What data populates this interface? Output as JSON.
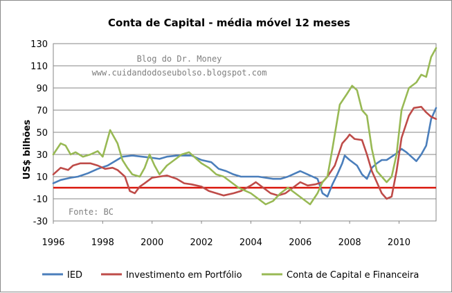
{
  "chart_data": {
    "type": "line",
    "title": "Conta de Capital - média móvel 12 meses",
    "xlabel": "",
    "ylabel": "US$ bilhões",
    "xlim": [
      1996,
      2011.5
    ],
    "ylim": [
      -30,
      130
    ],
    "x_ticks": [
      "1996",
      "1998",
      "2000",
      "2002",
      "2004",
      "2006",
      "2008",
      "2010"
    ],
    "y_ticks": [
      "130",
      "110",
      "90",
      "70",
      "50",
      "30",
      "10",
      "-10",
      "-30"
    ],
    "grid": true,
    "legend_position": "bottom",
    "reference_line": {
      "y": 0,
      "color": "#d9150b"
    },
    "annotations": [
      "Blog do Dr. Money",
      "www.cuidandodoseubolso.blogspot.com",
      "Fonte: BC"
    ],
    "series": [
      {
        "name": "IED",
        "color": "#4a7ebb",
        "points": [
          [
            1996,
            4
          ],
          [
            1996.3,
            7
          ],
          [
            1996.7,
            9
          ],
          [
            1997,
            10
          ],
          [
            1997.4,
            13
          ],
          [
            1997.8,
            17
          ],
          [
            1998.2,
            20
          ],
          [
            1998.5,
            24
          ],
          [
            1998.8,
            28
          ],
          [
            1999.2,
            29
          ],
          [
            1999.6,
            28
          ],
          [
            2000,
            27
          ],
          [
            2000.3,
            26
          ],
          [
            2000.6,
            28
          ],
          [
            2001,
            29
          ],
          [
            2001.3,
            29
          ],
          [
            2001.6,
            29
          ],
          [
            2002,
            25
          ],
          [
            2002.4,
            23
          ],
          [
            2002.7,
            17
          ],
          [
            2003,
            15
          ],
          [
            2003.3,
            12
          ],
          [
            2003.6,
            10
          ],
          [
            2004,
            10
          ],
          [
            2004.3,
            10
          ],
          [
            2004.6,
            9
          ],
          [
            2004.9,
            8
          ],
          [
            2005.2,
            8
          ],
          [
            2005.5,
            10
          ],
          [
            2005.8,
            13
          ],
          [
            2006,
            15
          ],
          [
            2006.3,
            12
          ],
          [
            2006.5,
            10
          ],
          [
            2006.7,
            8
          ],
          [
            2006.9,
            -5
          ],
          [
            2007.1,
            -8
          ],
          [
            2007.3,
            3
          ],
          [
            2007.5,
            12
          ],
          [
            2007.7,
            22
          ],
          [
            2007.8,
            29
          ],
          [
            2008,
            25
          ],
          [
            2008.3,
            20
          ],
          [
            2008.5,
            12
          ],
          [
            2008.7,
            8
          ],
          [
            2008.9,
            18
          ],
          [
            2009.1,
            22
          ],
          [
            2009.3,
            25
          ],
          [
            2009.5,
            25
          ],
          [
            2009.7,
            28
          ],
          [
            2009.9,
            31
          ],
          [
            2010.1,
            35
          ],
          [
            2010.3,
            32
          ],
          [
            2010.5,
            28
          ],
          [
            2010.7,
            24
          ],
          [
            2010.9,
            30
          ],
          [
            2011.1,
            38
          ],
          [
            2011.3,
            62
          ],
          [
            2011.5,
            72
          ]
        ]
      },
      {
        "name": "Investimento em Portfólio",
        "color": "#be4b48",
        "points": [
          [
            1996,
            12
          ],
          [
            1996.3,
            18
          ],
          [
            1996.6,
            16
          ],
          [
            1996.8,
            20
          ],
          [
            1997.1,
            22
          ],
          [
            1997.5,
            22
          ],
          [
            1997.8,
            20
          ],
          [
            1998.1,
            17
          ],
          [
            1998.4,
            18
          ],
          [
            1998.6,
            16
          ],
          [
            1998.9,
            10
          ],
          [
            1999.1,
            -3
          ],
          [
            1999.3,
            -5
          ],
          [
            1999.5,
            1
          ],
          [
            1999.7,
            4
          ],
          [
            2000,
            9
          ],
          [
            2000.3,
            10
          ],
          [
            2000.6,
            11
          ],
          [
            2001,
            8
          ],
          [
            2001.3,
            4
          ],
          [
            2001.6,
            3
          ],
          [
            2002,
            1
          ],
          [
            2002.3,
            -3
          ],
          [
            2002.6,
            -5
          ],
          [
            2002.9,
            -7
          ],
          [
            2003.3,
            -5
          ],
          [
            2003.6,
            -3
          ],
          [
            2004,
            2
          ],
          [
            2004.2,
            5
          ],
          [
            2004.5,
            0
          ],
          [
            2004.8,
            -5
          ],
          [
            2005.1,
            -7
          ],
          [
            2005.4,
            -5
          ],
          [
            2005.7,
            0
          ],
          [
            2006,
            5
          ],
          [
            2006.3,
            2
          ],
          [
            2006.6,
            3
          ],
          [
            2006.9,
            5
          ],
          [
            2007.1,
            10
          ],
          [
            2007.4,
            20
          ],
          [
            2007.7,
            40
          ],
          [
            2007.9,
            45
          ],
          [
            2008,
            48
          ],
          [
            2008.2,
            44
          ],
          [
            2008.5,
            43
          ],
          [
            2008.7,
            30
          ],
          [
            2008.9,
            15
          ],
          [
            2009.1,
            5
          ],
          [
            2009.3,
            -5
          ],
          [
            2009.5,
            -10
          ],
          [
            2009.7,
            -8
          ],
          [
            2009.9,
            15
          ],
          [
            2010.1,
            45
          ],
          [
            2010.4,
            65
          ],
          [
            2010.6,
            72
          ],
          [
            2010.9,
            73
          ],
          [
            2011.1,
            68
          ],
          [
            2011.3,
            64
          ],
          [
            2011.5,
            62
          ]
        ]
      },
      {
        "name": "Conta de Capital e Financeira",
        "color": "#98b954",
        "points": [
          [
            1996,
            30
          ],
          [
            1996.3,
            40
          ],
          [
            1996.5,
            38
          ],
          [
            1996.7,
            30
          ],
          [
            1996.9,
            32
          ],
          [
            1997.2,
            28
          ],
          [
            1997.5,
            30
          ],
          [
            1997.8,
            33
          ],
          [
            1998,
            28
          ],
          [
            1998.3,
            52
          ],
          [
            1998.6,
            40
          ],
          [
            1998.8,
            25
          ],
          [
            1999,
            18
          ],
          [
            1999.2,
            12
          ],
          [
            1999.5,
            10
          ],
          [
            1999.7,
            18
          ],
          [
            1999.9,
            30
          ],
          [
            2000.1,
            20
          ],
          [
            2000.3,
            12
          ],
          [
            2000.6,
            20
          ],
          [
            2000.9,
            25
          ],
          [
            2001.2,
            30
          ],
          [
            2001.5,
            32
          ],
          [
            2001.8,
            26
          ],
          [
            2002,
            22
          ],
          [
            2002.3,
            18
          ],
          [
            2002.6,
            12
          ],
          [
            2002.9,
            10
          ],
          [
            2003.2,
            5
          ],
          [
            2003.5,
            0
          ],
          [
            2003.8,
            -3
          ],
          [
            2004,
            -5
          ],
          [
            2004.3,
            -10
          ],
          [
            2004.6,
            -15
          ],
          [
            2004.9,
            -12
          ],
          [
            2005.2,
            -5
          ],
          [
            2005.5,
            0
          ],
          [
            2005.8,
            -5
          ],
          [
            2006.1,
            -10
          ],
          [
            2006.4,
            -15
          ],
          [
            2006.7,
            -5
          ],
          [
            2006.9,
            5
          ],
          [
            2007.1,
            10
          ],
          [
            2007.3,
            35
          ],
          [
            2007.6,
            75
          ],
          [
            2007.9,
            85
          ],
          [
            2008.1,
            92
          ],
          [
            2008.3,
            88
          ],
          [
            2008.5,
            70
          ],
          [
            2008.7,
            65
          ],
          [
            2008.9,
            35
          ],
          [
            2009.1,
            15
          ],
          [
            2009.3,
            10
          ],
          [
            2009.5,
            5
          ],
          [
            2009.7,
            10
          ],
          [
            2009.9,
            30
          ],
          [
            2010.1,
            70
          ],
          [
            2010.4,
            90
          ],
          [
            2010.7,
            95
          ],
          [
            2010.9,
            102
          ],
          [
            2011.1,
            100
          ],
          [
            2011.3,
            118
          ],
          [
            2011.5,
            126
          ]
        ]
      }
    ]
  }
}
